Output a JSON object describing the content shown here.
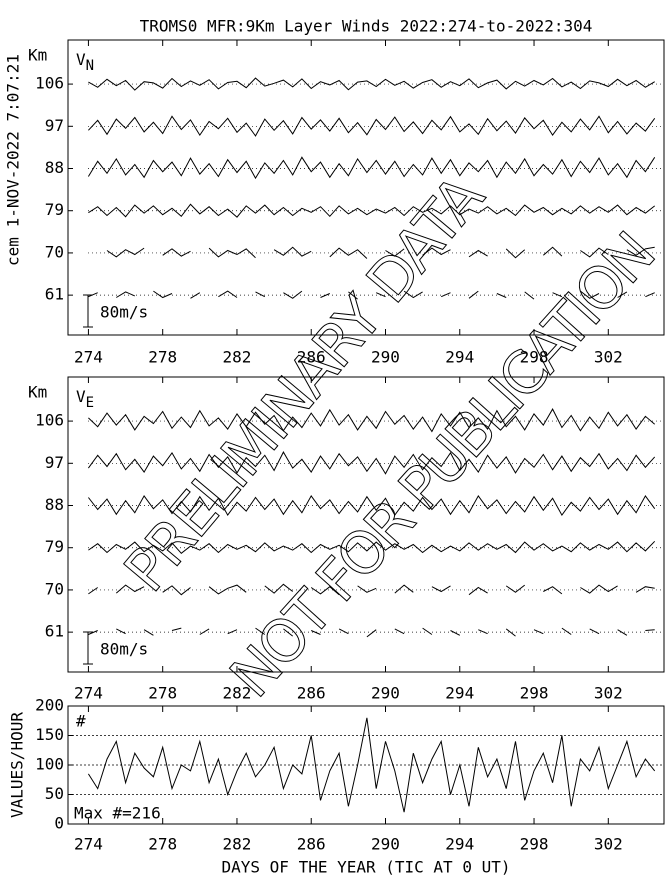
{
  "header": {
    "title": "TROMS0 MFR:9Km Layer Winds 2022:274-to-2022:304",
    "side_label": "cem 1-NOV-2022  7:07:21"
  },
  "watermark": [
    "PRELIMINARY DATA",
    "NOT FOR PUBLICATION"
  ],
  "chart_data": [
    {
      "type": "traces",
      "ylabel": "Km",
      "component": "V",
      "component_sub": "N",
      "scale_bar": {
        "value": 80,
        "label": "80m/s"
      },
      "xlim": [
        272.9,
        305
      ],
      "xticks": [
        274,
        278,
        282,
        286,
        290,
        294,
        298,
        302
      ],
      "ylim": [
        52.5,
        115.4
      ],
      "yticks": [
        61,
        70,
        79,
        88,
        97,
        106
      ],
      "x": [
        274,
        274.5,
        275,
        275.5,
        276,
        276.5,
        277,
        277.5,
        278,
        278.5,
        279,
        279.5,
        280,
        280.5,
        281,
        281.5,
        282,
        282.5,
        283,
        283.5,
        284,
        284.5,
        285,
        285.5,
        286,
        286.5,
        287,
        287.5,
        288,
        288.5,
        289,
        289.5,
        290,
        290.5,
        291,
        291.5,
        292,
        292.5,
        293,
        293.5,
        294,
        294.5,
        295,
        295.5,
        296,
        296.5,
        297,
        297.5,
        298,
        298.5,
        299,
        299.5,
        300,
        300.5,
        301,
        301.5,
        302,
        302.5,
        303,
        303.5,
        304,
        304.5
      ],
      "series": [
        {
          "level": 106,
          "values": [
            5,
            -8,
            12,
            -4,
            9,
            -15,
            6,
            3,
            -10,
            14,
            -6,
            8,
            -3,
            11,
            -12,
            4,
            7,
            -9,
            15,
            -5,
            2,
            10,
            -7,
            13,
            -11,
            6,
            -2,
            9,
            -14,
            5,
            8,
            -6,
            12,
            -3,
            7,
            -10,
            4,
            11,
            -8,
            6,
            -4,
            13,
            -9,
            3,
            10,
            -12,
            7,
            -5,
            9,
            -2,
            14,
            -7,
            5,
            -11,
            8,
            3,
            -6,
            12,
            -4,
            9,
            -8,
            6
          ]
        },
        {
          "level": 97,
          "values": [
            -10,
            15,
            -20,
            18,
            -5,
            22,
            -14,
            10,
            -18,
            25,
            -8,
            16,
            -22,
            12,
            -6,
            20,
            -15,
            8,
            -24,
            18,
            -10,
            14,
            -19,
            22,
            -7,
            16,
            -12,
            20,
            -16,
            9,
            -21,
            17,
            -8,
            23,
            -13,
            11,
            -18,
            15,
            -9,
            24,
            -14,
            6,
            -20,
            19,
            -11,
            13,
            -17,
            21,
            -6,
            15,
            -22,
            10,
            -14,
            18,
            -9,
            25,
            -16,
            12,
            -19,
            8,
            -12,
            20
          ]
        },
        {
          "level": 88,
          "values": [
            -20,
            18,
            -12,
            24,
            -16,
            10,
            -22,
            20,
            -8,
            16,
            -18,
            26,
            -14,
            12,
            -20,
            22,
            -10,
            18,
            -24,
            14,
            -12,
            20,
            -16,
            28,
            -8,
            16,
            -22,
            12,
            -18,
            24,
            -10,
            20,
            -14,
            18,
            -20,
            10,
            -16,
            26,
            -12,
            22,
            -18,
            14,
            -8,
            20,
            -22,
            16,
            -12,
            24,
            -18,
            10,
            -14,
            22,
            -20,
            18,
            -10,
            26,
            -16,
            12,
            -22,
            20,
            -8,
            28
          ]
        },
        {
          "level": 79,
          "values": [
            -5,
            10,
            -12,
            8,
            -15,
            14,
            -6,
            12,
            -10,
            6,
            -14,
            16,
            -8,
            10,
            -12,
            4,
            -16,
            12,
            -6,
            14,
            -10,
            8,
            -12,
            6,
            -4,
            10,
            -14,
            12,
            -8,
            6,
            -10,
            4,
            -6,
            8,
            -12,
            10,
            -4,
            6,
            -8,
            12,
            -10,
            4,
            -6,
            10,
            -8,
            6,
            -12,
            14,
            -4,
            8,
            -10,
            6,
            -8,
            12,
            -6,
            10,
            -4,
            14,
            -10,
            8,
            -6,
            12
          ]
        },
        {
          "level": 70,
          "values": [
            -8,
            null,
            6,
            -10,
            8,
            -4,
            12,
            null,
            -6,
            10,
            -8,
            4,
            null,
            12,
            -10,
            6,
            -4,
            10,
            -12,
            null,
            8,
            -6,
            14,
            -8,
            4,
            null,
            -10,
            12,
            -6,
            8,
            -14,
            null,
            6,
            -8,
            10,
            null,
            -6,
            12,
            -4,
            8,
            null,
            -10,
            6,
            -8,
            null,
            10,
            -12,
            8,
            null,
            -6,
            14,
            -8,
            null,
            6,
            -10,
            12,
            -4,
            null,
            8,
            -6,
            10,
            14
          ]
        },
        {
          "level": 61,
          "values": [
            -4,
            6,
            null,
            -6,
            8,
            -2,
            null,
            10,
            -6,
            4,
            null,
            -8,
            6,
            null,
            -4,
            10,
            -6,
            null,
            8,
            -4,
            null,
            6,
            -8,
            10,
            null,
            -6,
            4,
            null,
            8,
            -10,
            null,
            6,
            -4,
            null,
            10,
            -6,
            8,
            null,
            -4,
            6,
            null,
            -8,
            10,
            null,
            4,
            -6,
            null,
            8,
            -10,
            null,
            6,
            -4,
            null,
            10,
            -8,
            4,
            null,
            -6,
            8,
            null,
            -4,
            6
          ]
        }
      ]
    },
    {
      "type": "traces",
      "ylabel": "Km",
      "component": "V",
      "component_sub": "E",
      "scale_bar": {
        "value": 80,
        "label": "80m/s"
      },
      "xlim": [
        272.9,
        305
      ],
      "xticks": [
        274,
        278,
        282,
        286,
        290,
        294,
        298,
        302
      ],
      "ylim": [
        52.5,
        115.4
      ],
      "yticks": [
        61,
        70,
        79,
        88,
        97,
        106
      ],
      "x": [
        274,
        274.5,
        275,
        275.5,
        276,
        276.5,
        277,
        277.5,
        278,
        278.5,
        279,
        279.5,
        280,
        280.5,
        281,
        281.5,
        282,
        282.5,
        283,
        283.5,
        284,
        284.5,
        285,
        285.5,
        286,
        286.5,
        287,
        287.5,
        288,
        288.5,
        289,
        289.5,
        290,
        290.5,
        291,
        291.5,
        292,
        292.5,
        293,
        293.5,
        294,
        294.5,
        295,
        295.5,
        296,
        296.5,
        297,
        297.5,
        298,
        298.5,
        299,
        299.5,
        300,
        300.5,
        301,
        301.5,
        302,
        302.5,
        303,
        303.5,
        304,
        304.5
      ],
      "series": [
        {
          "level": 106,
          "values": [
            8,
            -14,
            20,
            -10,
            16,
            -22,
            12,
            -6,
            24,
            -18,
            10,
            -16,
            26,
            -12,
            8,
            -20,
            18,
            -14,
            22,
            -8,
            14,
            -24,
            10,
            -16,
            20,
            -12,
            28,
            -10,
            16,
            -22,
            12,
            -18,
            24,
            -8,
            14,
            -20,
            10,
            -26,
            18,
            -12,
            22,
            -16,
            8,
            -20,
            26,
            -14,
            12,
            -22,
            18,
            -10,
            30,
            -16,
            14,
            -24,
            10,
            -18,
            22,
            -12,
            16,
            -20,
            12,
            -8
          ]
        },
        {
          "level": 97,
          "values": [
            -12,
            20,
            -8,
            24,
            -16,
            10,
            -22,
            18,
            -6,
            26,
            -14,
            12,
            -20,
            22,
            -10,
            16,
            -24,
            14,
            -8,
            20,
            -18,
            28,
            -12,
            10,
            -22,
            18,
            -14,
            24,
            -6,
            16,
            -20,
            12,
            -26,
            18,
            -10,
            22,
            -16,
            14,
            -8,
            26,
            -18,
            10,
            -22,
            20,
            -12,
            16,
            -24,
            12,
            -10,
            22,
            -16,
            18,
            -20,
            14,
            -8,
            24,
            -14,
            12,
            -18,
            20,
            -10,
            16
          ]
        },
        {
          "level": 88,
          "values": [
            20,
            -10,
            16,
            -22,
            12,
            -18,
            24,
            -8,
            14,
            -20,
            10,
            -16,
            22,
            -12,
            18,
            -24,
            8,
            -14,
            20,
            -10,
            16,
            -22,
            12,
            -18,
            24,
            -8,
            14,
            -20,
            10,
            -16,
            22,
            -12,
            18,
            -24,
            8,
            -14,
            20,
            -10,
            16,
            -22,
            12,
            -18,
            24,
            -8,
            14,
            -20,
            10,
            -16,
            22,
            -12,
            18,
            -24,
            8,
            -14,
            20,
            -10,
            16,
            -22,
            12,
            -18,
            24,
            -8
          ]
        },
        {
          "level": 79,
          "values": [
            -6,
            10,
            -12,
            8,
            -4,
            14,
            -10,
            6,
            -8,
            12,
            -14,
            4,
            -6,
            10,
            -12,
            8,
            -4,
            6,
            -10,
            12,
            -8,
            4,
            -6,
            10,
            -12,
            8,
            -4,
            6,
            -10,
            12,
            -8,
            14,
            -6,
            10,
            -4,
            8,
            -12,
            6,
            -10,
            4,
            -8,
            12,
            -6,
            10,
            -4,
            8,
            -12,
            14,
            -6,
            10,
            -8,
            4,
            -10,
            12,
            -6,
            8,
            -4,
            14,
            -10,
            12,
            -8,
            16
          ]
        },
        {
          "level": 70,
          "values": [
            -10,
            6,
            null,
            -8,
            12,
            -4,
            8,
            null,
            -6,
            10,
            -12,
            6,
            null,
            8,
            -10,
            4,
            12,
            -6,
            null,
            10,
            -8,
            14,
            -4,
            null,
            6,
            -10,
            8,
            -12,
            null,
            10,
            -6,
            4,
            null,
            -8,
            12,
            -6,
            null,
            8,
            -4,
            10,
            null,
            -12,
            6,
            -8,
            null,
            10,
            -6,
            12,
            null,
            -4,
            8,
            -10,
            null,
            6,
            -8,
            12,
            -4,
            10,
            null,
            -6,
            8,
            4
          ]
        },
        {
          "level": 61,
          "values": [
            -6,
            4,
            null,
            8,
            -4,
            null,
            6,
            -8,
            null,
            4,
            10,
            null,
            -6,
            8,
            null,
            -4,
            6,
            null,
            10,
            -6,
            null,
            8,
            -10,
            null,
            4,
            -6,
            null,
            8,
            -4,
            null,
            -12,
            6,
            null,
            8,
            -4,
            null,
            10,
            -6,
            null,
            4,
            -8,
            null,
            6,
            -4,
            null,
            8,
            -10,
            null,
            6,
            -4,
            null,
            10,
            -6,
            null,
            8,
            -4,
            null,
            6,
            -8,
            null,
            4,
            6
          ]
        }
      ]
    },
    {
      "type": "line",
      "ylabel": "VALUES/HOUR",
      "corner_label": "#",
      "note": "Max #=216",
      "xlabel": "DAYS OF THE YEAR (TIC AT 0 UT)",
      "xlim": [
        272.9,
        305
      ],
      "xticks": [
        274,
        278,
        282,
        286,
        290,
        294,
        298,
        302
      ],
      "ylim": [
        0,
        200
      ],
      "yticks": [
        0,
        50,
        100,
        150,
        200
      ],
      "grid": true,
      "x": [
        274,
        274.5,
        275,
        275.5,
        276,
        276.5,
        277,
        277.5,
        278,
        278.5,
        279,
        279.5,
        280,
        280.5,
        281,
        281.5,
        282,
        282.5,
        283,
        283.5,
        284,
        284.5,
        285,
        285.5,
        286,
        286.5,
        287,
        287.5,
        288,
        288.5,
        289,
        289.5,
        290,
        290.5,
        291,
        291.5,
        292,
        292.5,
        293,
        293.5,
        294,
        294.5,
        295,
        295.5,
        296,
        296.5,
        297,
        297.5,
        298,
        298.5,
        299,
        299.5,
        300,
        300.5,
        301,
        301.5,
        302,
        302.5,
        303,
        303.5,
        304,
        304.5
      ],
      "values": [
        85,
        60,
        110,
        140,
        70,
        120,
        95,
        80,
        130,
        60,
        100,
        90,
        140,
        70,
        110,
        50,
        90,
        120,
        80,
        100,
        130,
        60,
        100,
        85,
        150,
        40,
        90,
        120,
        30,
        100,
        180,
        60,
        140,
        90,
        20,
        120,
        70,
        110,
        140,
        50,
        100,
        30,
        130,
        80,
        110,
        60,
        140,
        40,
        90,
        120,
        70,
        150,
        30,
        110,
        90,
        130,
        60,
        100,
        140,
        80,
        110,
        90
      ]
    }
  ]
}
